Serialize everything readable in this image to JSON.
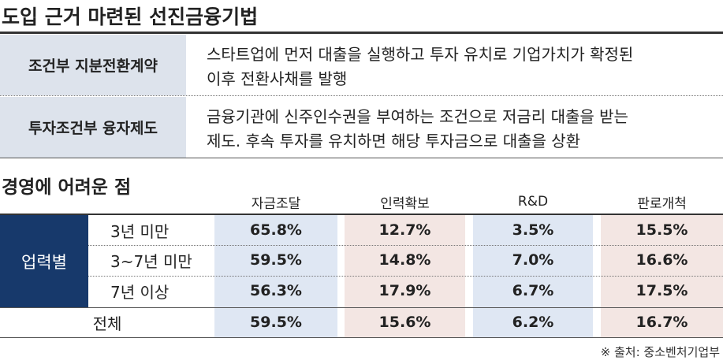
{
  "title": "도입 근거 마련된 선진금융기법",
  "definitions": [
    {
      "term": "조건부 지분전환계약",
      "description": [
        "스타트업에 먼저 대출을 실행하고 투자 유치로 기업가치가 확정된",
        "이후 전환사채를 발행"
      ]
    },
    {
      "term": "투자조건부 융자제도",
      "description": [
        "금융기관에 신주인수권을 부여하는 조건으로 저금리 대출을 받는",
        "제도. 후속 투자를 유치하면 해당 투자금으로 대출을 상환"
      ]
    }
  ],
  "table": {
    "title": "경영에 어려운 점",
    "columns": [
      "자금조달",
      "인력확보",
      "R&D",
      "판로개척"
    ],
    "group": "업력별",
    "rows": [
      {
        "label": "3년 미만",
        "cells": [
          "65.8%",
          "12.7%",
          "3.5%",
          "15.5%"
        ]
      },
      {
        "label": "3~7년 미만",
        "cells": [
          "59.5%",
          "14.8%",
          "7.0%",
          "16.6%"
        ]
      },
      {
        "label": "7년 이상",
        "cells": [
          "56.3%",
          "17.9%",
          "6.7%",
          "17.5%"
        ]
      }
    ],
    "total": {
      "label": "전체",
      "cells": [
        "59.5%",
        "15.6%",
        "6.2%",
        "16.7%"
      ]
    }
  },
  "source": "※ 출처: 중소벤처기업부"
}
